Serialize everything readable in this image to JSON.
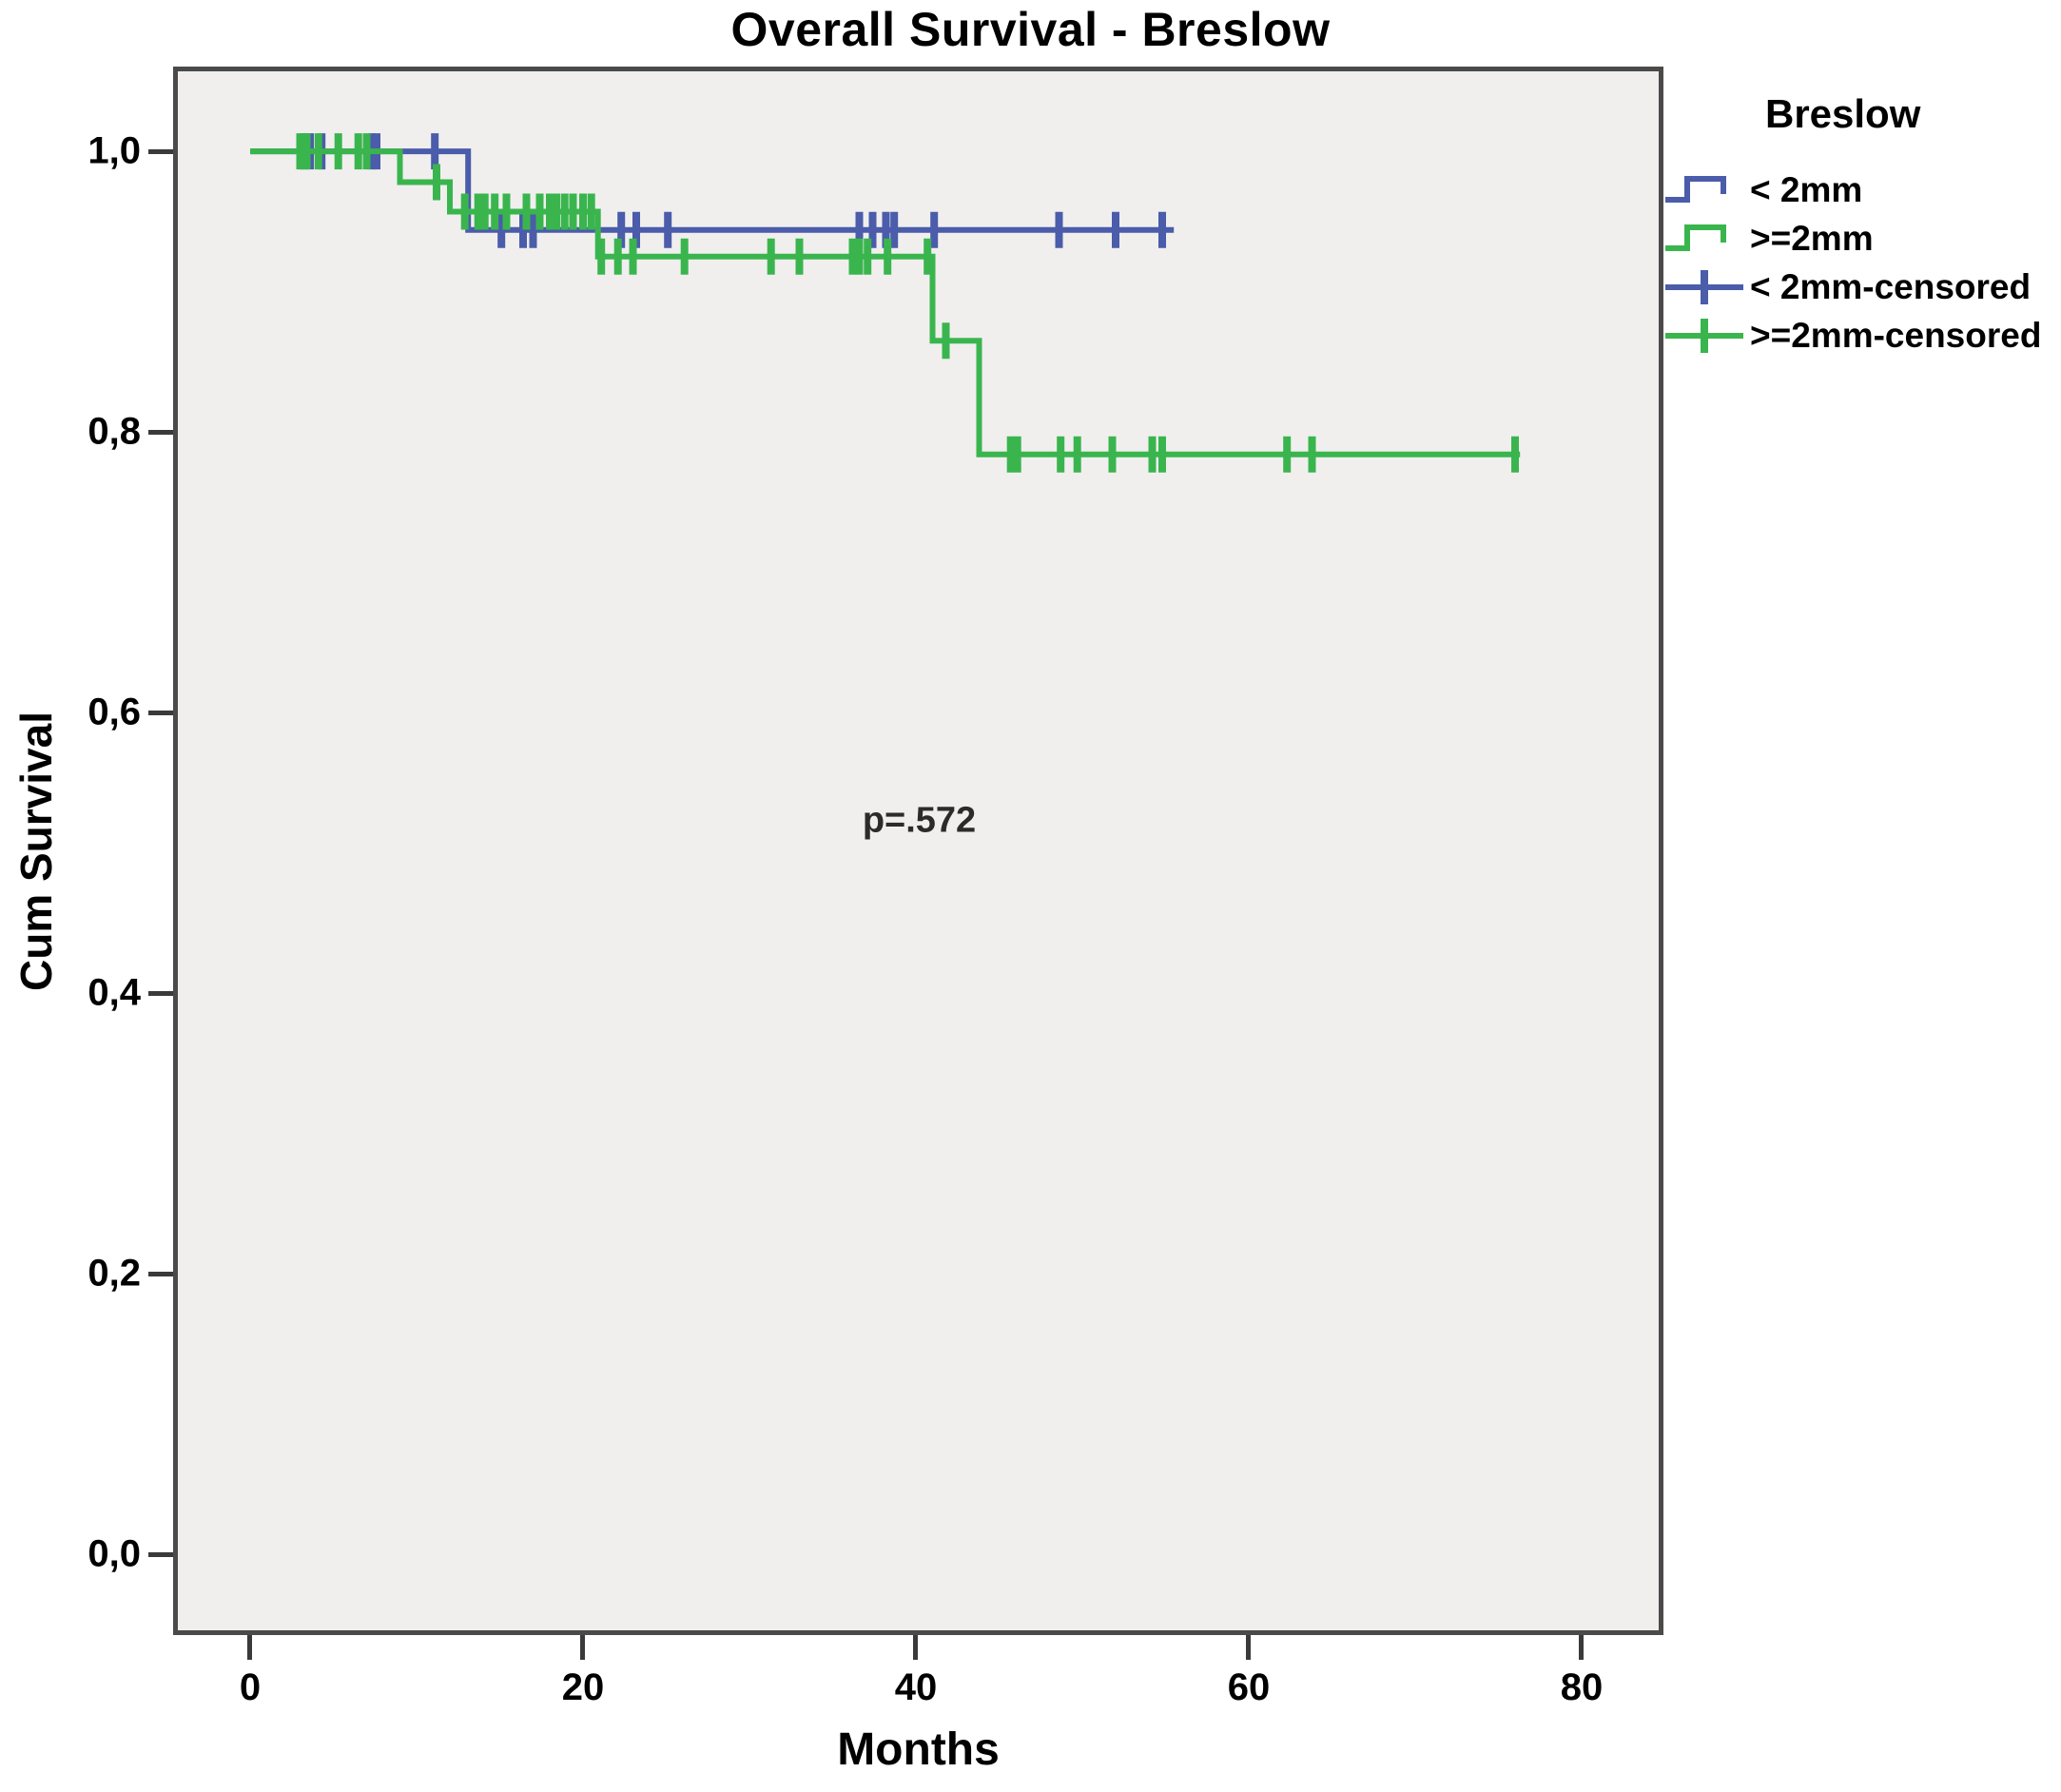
{
  "chart_title": "Overall Survival - Breslow",
  "chart_data": {
    "type": "line",
    "subtype": "kaplan-meier-step",
    "title": "Overall Survival - Breslow",
    "xlabel": "Months",
    "ylabel": "Cum Survival",
    "xlim": [
      -4.34,
      84.63
    ],
    "ylim": [
      -0.054,
      1.057
    ],
    "xticks": [
      0,
      20,
      40,
      60,
      80
    ],
    "xtick_labels": [
      "0",
      "20",
      "40",
      "60",
      "80"
    ],
    "yticks": [
      1.0,
      0.8,
      0.6,
      0.4,
      0.2,
      0.0
    ],
    "ytick_labels": [
      "1,0",
      "0,8",
      "0,6",
      "0,4",
      "0,2",
      "0,0"
    ],
    "grid": false,
    "plot_background": "#f0efee",
    "annotation": {
      "text": "p=.572",
      "x": 40.2,
      "y": 0.515
    },
    "legend_position": "right",
    "series": [
      {
        "name": "< 2mm",
        "color": "#4a5caa",
        "steps": [
          [
            0,
            1.0
          ],
          [
            13.1,
            1.0
          ],
          [
            13.1,
            0.944
          ],
          [
            55.5,
            0.944
          ]
        ],
        "censored": [
          [
            3.2,
            1.0
          ],
          [
            3.6,
            1.0
          ],
          [
            4.3,
            1.0
          ],
          [
            7.3,
            1.0
          ],
          [
            7.6,
            1.0
          ],
          [
            11.1,
            1.0
          ],
          [
            15.1,
            0.944
          ],
          [
            16.4,
            0.944
          ],
          [
            17.0,
            0.944
          ],
          [
            22.3,
            0.944
          ],
          [
            23.2,
            0.944
          ],
          [
            25.1,
            0.944
          ],
          [
            36.6,
            0.944
          ],
          [
            37.4,
            0.944
          ],
          [
            38.2,
            0.944
          ],
          [
            38.7,
            0.944
          ],
          [
            41.1,
            0.944
          ],
          [
            48.6,
            0.944
          ],
          [
            52.0,
            0.944
          ],
          [
            54.8,
            0.944
          ]
        ]
      },
      {
        "name": ">=2mm",
        "color": "#3ab54e",
        "steps": [
          [
            0,
            1.0
          ],
          [
            9.0,
            1.0
          ],
          [
            9.0,
            0.978
          ],
          [
            12.0,
            0.978
          ],
          [
            12.0,
            0.957
          ],
          [
            20.9,
            0.957
          ],
          [
            20.9,
            0.925
          ],
          [
            41.0,
            0.925
          ],
          [
            41.0,
            0.865
          ],
          [
            43.8,
            0.865
          ],
          [
            43.8,
            0.784
          ],
          [
            76.3,
            0.784
          ]
        ],
        "censored": [
          [
            3.0,
            1.0
          ],
          [
            3.4,
            1.0
          ],
          [
            4.1,
            1.0
          ],
          [
            5.3,
            1.0
          ],
          [
            6.5,
            1.0
          ],
          [
            7.0,
            1.0
          ],
          [
            11.2,
            0.978
          ],
          [
            12.9,
            0.957
          ],
          [
            13.7,
            0.957
          ],
          [
            14.1,
            0.957
          ],
          [
            14.7,
            0.957
          ],
          [
            15.4,
            0.957
          ],
          [
            16.6,
            0.957
          ],
          [
            17.4,
            0.957
          ],
          [
            18.0,
            0.957
          ],
          [
            18.4,
            0.957
          ],
          [
            18.9,
            0.957
          ],
          [
            19.4,
            0.957
          ],
          [
            20.0,
            0.957
          ],
          [
            20.5,
            0.957
          ],
          [
            21.1,
            0.925
          ],
          [
            22.1,
            0.925
          ],
          [
            23.0,
            0.925
          ],
          [
            26.1,
            0.925
          ],
          [
            31.3,
            0.925
          ],
          [
            33.0,
            0.925
          ],
          [
            36.2,
            0.925
          ],
          [
            36.6,
            0.925
          ],
          [
            37.1,
            0.925
          ],
          [
            38.3,
            0.925
          ],
          [
            40.7,
            0.925
          ],
          [
            41.8,
            0.865
          ],
          [
            45.7,
            0.784
          ],
          [
            46.1,
            0.784
          ],
          [
            48.7,
            0.784
          ],
          [
            49.7,
            0.784
          ],
          [
            51.8,
            0.784
          ],
          [
            54.2,
            0.784
          ],
          [
            54.8,
            0.784
          ],
          [
            62.3,
            0.784
          ],
          [
            63.8,
            0.784
          ],
          [
            76.0,
            0.784
          ]
        ]
      }
    ]
  },
  "legend": {
    "title": "Breslow",
    "entries": [
      {
        "label": "< 2mm",
        "swatch": "step",
        "color": "#4a5caa"
      },
      {
        "label": ">=2mm",
        "swatch": "step",
        "color": "#3ab54e"
      },
      {
        "label": "< 2mm-censored",
        "swatch": "censored",
        "color": "#4a5caa"
      },
      {
        "label": ">=2mm-censored",
        "swatch": "censored",
        "color": "#3ab54e"
      }
    ]
  },
  "axes": {
    "x_label": "Months",
    "y_label": "Cum Survival"
  },
  "annotation_text": "p=.572"
}
